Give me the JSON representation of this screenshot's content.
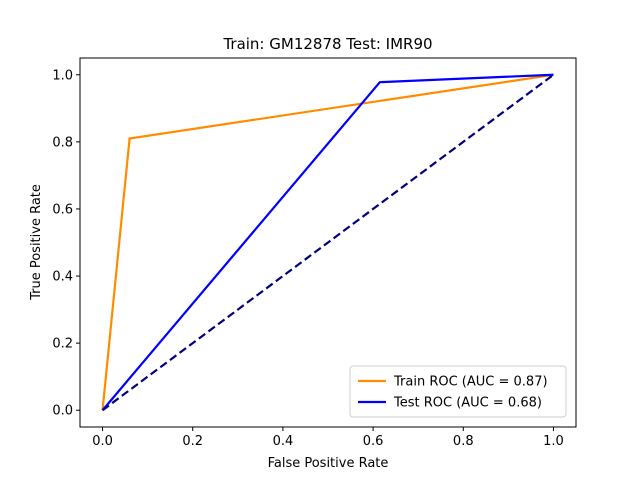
{
  "chart_data": {
    "type": "line",
    "title": "Train: GM12878   Test: IMR90",
    "xlabel": "False Positive Rate",
    "ylabel": "True Positive Rate",
    "xlim": [
      -0.05,
      1.05
    ],
    "ylim": [
      -0.05,
      1.05
    ],
    "xticks": [
      0.0,
      0.2,
      0.4,
      0.6,
      0.8,
      1.0
    ],
    "yticks": [
      0.0,
      0.2,
      0.4,
      0.6,
      0.8,
      1.0
    ],
    "xtick_labels": [
      "0.0",
      "0.2",
      "0.4",
      "0.6",
      "0.8",
      "1.0"
    ],
    "ytick_labels": [
      "0.0",
      "0.2",
      "0.4",
      "0.6",
      "0.8",
      "1.0"
    ],
    "grid": false,
    "legend_position": "lower-right",
    "series": [
      {
        "name": "Train ROC (AUC = 0.87)",
        "color": "#ff8c00",
        "style": "solid",
        "x": [
          0.0,
          0.06,
          1.0
        ],
        "y": [
          0.0,
          0.81,
          1.0
        ]
      },
      {
        "name": "Test ROC (AUC = 0.68)",
        "color": "#0000ff",
        "style": "solid",
        "x": [
          0.0,
          0.615,
          1.0
        ],
        "y": [
          0.0,
          0.978,
          1.0
        ]
      },
      {
        "color": "#000080",
        "style": "dashed",
        "x": [
          0.0,
          1.0
        ],
        "y": [
          0.0,
          1.0
        ]
      }
    ]
  }
}
